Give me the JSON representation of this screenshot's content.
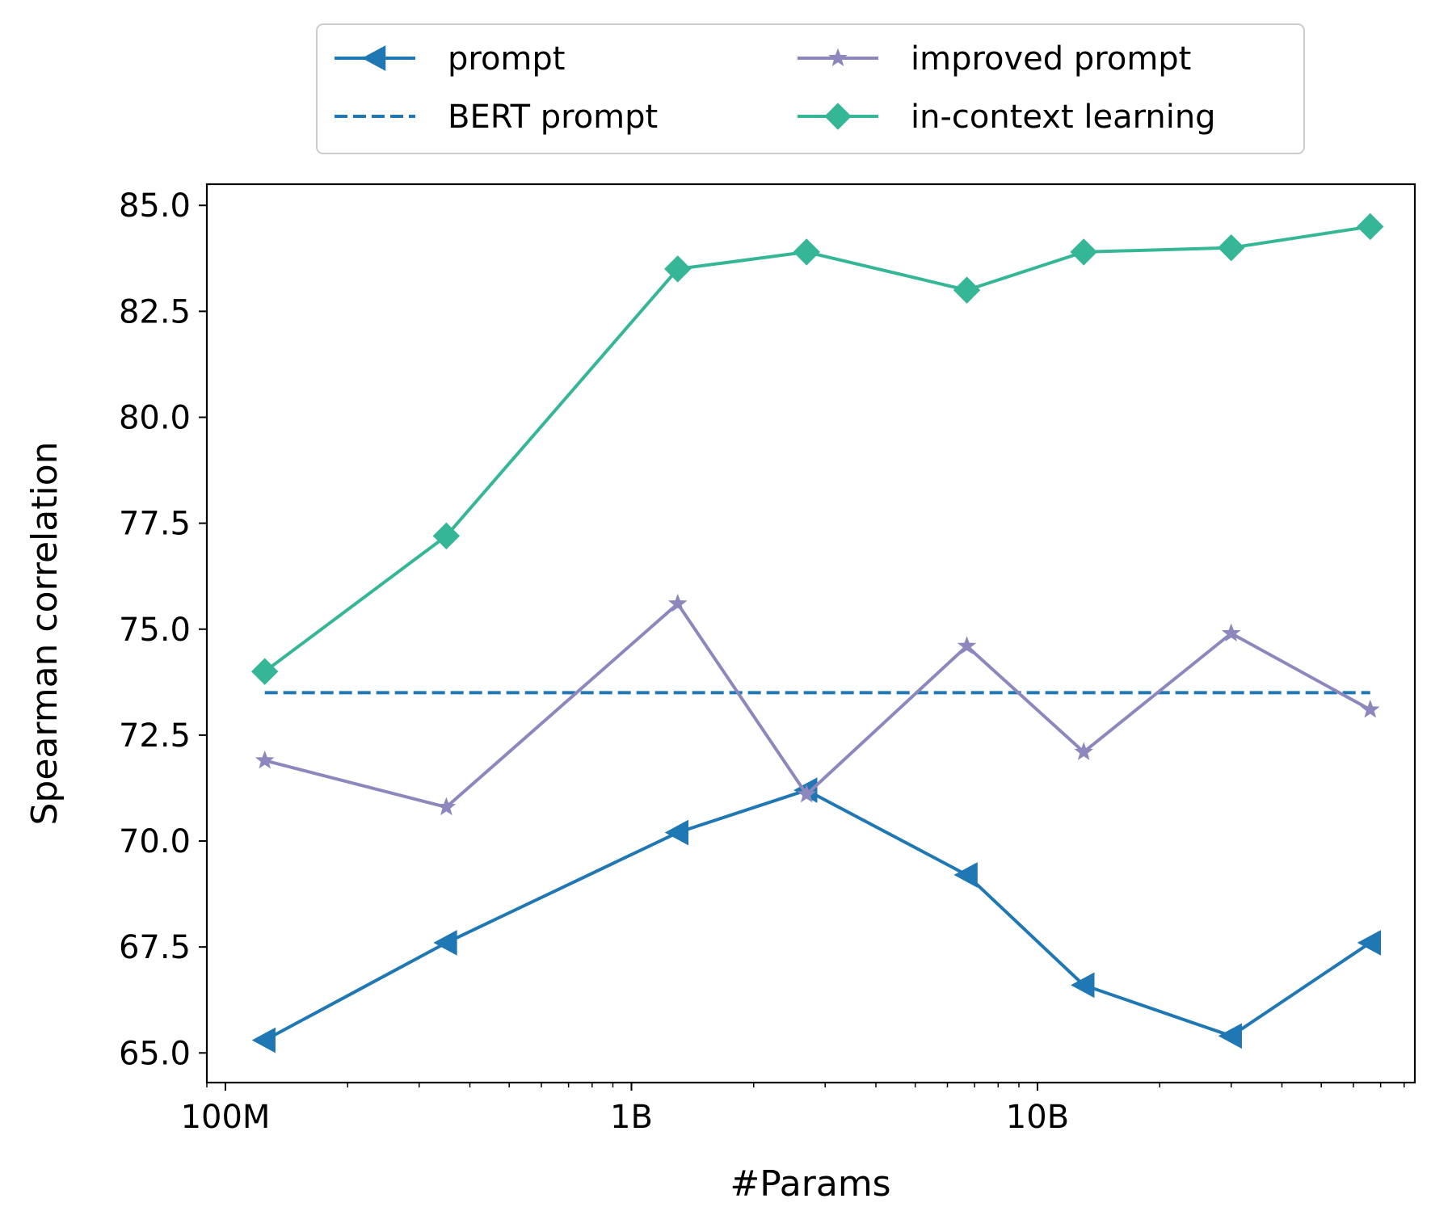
{
  "chart_data": {
    "type": "line",
    "xlabel": "#Params",
    "ylabel": "Spearman correlation",
    "x_scale": "log",
    "x_ticks": [
      {
        "value": 100000000,
        "label": "100M"
      },
      {
        "value": 1000000000,
        "label": "1B"
      },
      {
        "value": 10000000000,
        "label": "10B"
      }
    ],
    "xlim": [
      90000000,
      85000000000
    ],
    "ylim": [
      64.3,
      85.5
    ],
    "y_ticks": [
      65.0,
      67.5,
      70.0,
      72.5,
      75.0,
      77.5,
      80.0,
      82.5,
      85.0
    ],
    "y_tick_labels": [
      "65.0",
      "67.5",
      "70.0",
      "72.5",
      "75.0",
      "77.5",
      "80.0",
      "82.5",
      "85.0"
    ],
    "x": [
      125000000,
      350000000,
      1300000000,
      2700000000,
      6700000000,
      13000000000,
      30000000000,
      66000000000
    ],
    "grid": false,
    "legend_position": "top-center",
    "series": [
      {
        "name": "prompt",
        "color": "#1f77b4",
        "marker": "triangle-left",
        "style": "solid",
        "values": [
          65.3,
          67.6,
          70.2,
          71.2,
          69.2,
          66.6,
          65.4,
          67.6
        ]
      },
      {
        "name": "BERT prompt",
        "color": "#1f77b4",
        "marker": "none",
        "style": "dashed",
        "values": [
          73.5,
          73.5,
          73.5,
          73.5,
          73.5,
          73.5,
          73.5,
          73.5
        ]
      },
      {
        "name": "improved prompt",
        "color": "#8c88bd",
        "marker": "star",
        "style": "solid",
        "values": [
          71.9,
          70.8,
          75.6,
          71.1,
          74.6,
          72.1,
          74.9,
          73.1
        ]
      },
      {
        "name": "in-context learning",
        "color": "#35b797",
        "marker": "diamond",
        "style": "solid",
        "values": [
          74.0,
          77.2,
          83.5,
          83.9,
          83.0,
          83.9,
          84.0,
          84.5
        ]
      }
    ]
  }
}
